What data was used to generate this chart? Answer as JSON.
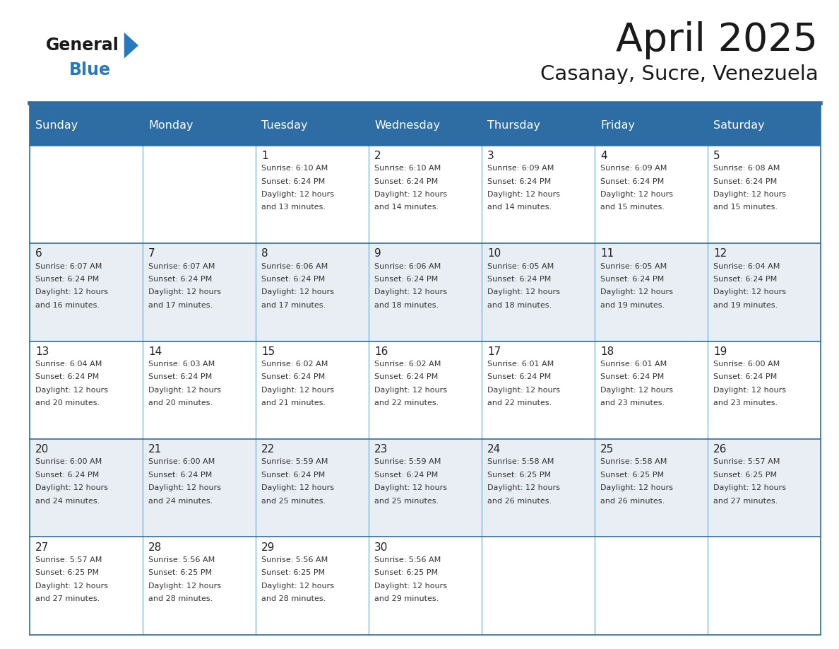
{
  "title": "April 2025",
  "subtitle": "Casanay, Sucre, Venezuela",
  "header_bg_color": "#2E6DA4",
  "header_text_color": "#FFFFFF",
  "row_bg_odd": "#FFFFFF",
  "row_bg_even": "#E8EEF4",
  "grid_color": "#2E6DA4",
  "text_color": "#222222",
  "info_color": "#333333",
  "days_of_week": [
    "Sunday",
    "Monday",
    "Tuesday",
    "Wednesday",
    "Thursday",
    "Friday",
    "Saturday"
  ],
  "logo_text1": "General",
  "logo_text2": "Blue",
  "logo_color1": "#1a1a1a",
  "logo_color2": "#2779BD",
  "calendar": [
    [
      {
        "day": "",
        "info": ""
      },
      {
        "day": "",
        "info": ""
      },
      {
        "day": "1",
        "info": "Sunrise: 6:10 AM\nSunset: 6:24 PM\nDaylight: 12 hours\nand 13 minutes."
      },
      {
        "day": "2",
        "info": "Sunrise: 6:10 AM\nSunset: 6:24 PM\nDaylight: 12 hours\nand 14 minutes."
      },
      {
        "day": "3",
        "info": "Sunrise: 6:09 AM\nSunset: 6:24 PM\nDaylight: 12 hours\nand 14 minutes."
      },
      {
        "day": "4",
        "info": "Sunrise: 6:09 AM\nSunset: 6:24 PM\nDaylight: 12 hours\nand 15 minutes."
      },
      {
        "day": "5",
        "info": "Sunrise: 6:08 AM\nSunset: 6:24 PM\nDaylight: 12 hours\nand 15 minutes."
      }
    ],
    [
      {
        "day": "6",
        "info": "Sunrise: 6:07 AM\nSunset: 6:24 PM\nDaylight: 12 hours\nand 16 minutes."
      },
      {
        "day": "7",
        "info": "Sunrise: 6:07 AM\nSunset: 6:24 PM\nDaylight: 12 hours\nand 17 minutes."
      },
      {
        "day": "8",
        "info": "Sunrise: 6:06 AM\nSunset: 6:24 PM\nDaylight: 12 hours\nand 17 minutes."
      },
      {
        "day": "9",
        "info": "Sunrise: 6:06 AM\nSunset: 6:24 PM\nDaylight: 12 hours\nand 18 minutes."
      },
      {
        "day": "10",
        "info": "Sunrise: 6:05 AM\nSunset: 6:24 PM\nDaylight: 12 hours\nand 18 minutes."
      },
      {
        "day": "11",
        "info": "Sunrise: 6:05 AM\nSunset: 6:24 PM\nDaylight: 12 hours\nand 19 minutes."
      },
      {
        "day": "12",
        "info": "Sunrise: 6:04 AM\nSunset: 6:24 PM\nDaylight: 12 hours\nand 19 minutes."
      }
    ],
    [
      {
        "day": "13",
        "info": "Sunrise: 6:04 AM\nSunset: 6:24 PM\nDaylight: 12 hours\nand 20 minutes."
      },
      {
        "day": "14",
        "info": "Sunrise: 6:03 AM\nSunset: 6:24 PM\nDaylight: 12 hours\nand 20 minutes."
      },
      {
        "day": "15",
        "info": "Sunrise: 6:02 AM\nSunset: 6:24 PM\nDaylight: 12 hours\nand 21 minutes."
      },
      {
        "day": "16",
        "info": "Sunrise: 6:02 AM\nSunset: 6:24 PM\nDaylight: 12 hours\nand 22 minutes."
      },
      {
        "day": "17",
        "info": "Sunrise: 6:01 AM\nSunset: 6:24 PM\nDaylight: 12 hours\nand 22 minutes."
      },
      {
        "day": "18",
        "info": "Sunrise: 6:01 AM\nSunset: 6:24 PM\nDaylight: 12 hours\nand 23 minutes."
      },
      {
        "day": "19",
        "info": "Sunrise: 6:00 AM\nSunset: 6:24 PM\nDaylight: 12 hours\nand 23 minutes."
      }
    ],
    [
      {
        "day": "20",
        "info": "Sunrise: 6:00 AM\nSunset: 6:24 PM\nDaylight: 12 hours\nand 24 minutes."
      },
      {
        "day": "21",
        "info": "Sunrise: 6:00 AM\nSunset: 6:24 PM\nDaylight: 12 hours\nand 24 minutes."
      },
      {
        "day": "22",
        "info": "Sunrise: 5:59 AM\nSunset: 6:24 PM\nDaylight: 12 hours\nand 25 minutes."
      },
      {
        "day": "23",
        "info": "Sunrise: 5:59 AM\nSunset: 6:24 PM\nDaylight: 12 hours\nand 25 minutes."
      },
      {
        "day": "24",
        "info": "Sunrise: 5:58 AM\nSunset: 6:25 PM\nDaylight: 12 hours\nand 26 minutes."
      },
      {
        "day": "25",
        "info": "Sunrise: 5:58 AM\nSunset: 6:25 PM\nDaylight: 12 hours\nand 26 minutes."
      },
      {
        "day": "26",
        "info": "Sunrise: 5:57 AM\nSunset: 6:25 PM\nDaylight: 12 hours\nand 27 minutes."
      }
    ],
    [
      {
        "day": "27",
        "info": "Sunrise: 5:57 AM\nSunset: 6:25 PM\nDaylight: 12 hours\nand 27 minutes."
      },
      {
        "day": "28",
        "info": "Sunrise: 5:56 AM\nSunset: 6:25 PM\nDaylight: 12 hours\nand 28 minutes."
      },
      {
        "day": "29",
        "info": "Sunrise: 5:56 AM\nSunset: 6:25 PM\nDaylight: 12 hours\nand 28 minutes."
      },
      {
        "day": "30",
        "info": "Sunrise: 5:56 AM\nSunset: 6:25 PM\nDaylight: 12 hours\nand 29 minutes."
      },
      {
        "day": "",
        "info": ""
      },
      {
        "day": "",
        "info": ""
      },
      {
        "day": "",
        "info": ""
      }
    ]
  ]
}
